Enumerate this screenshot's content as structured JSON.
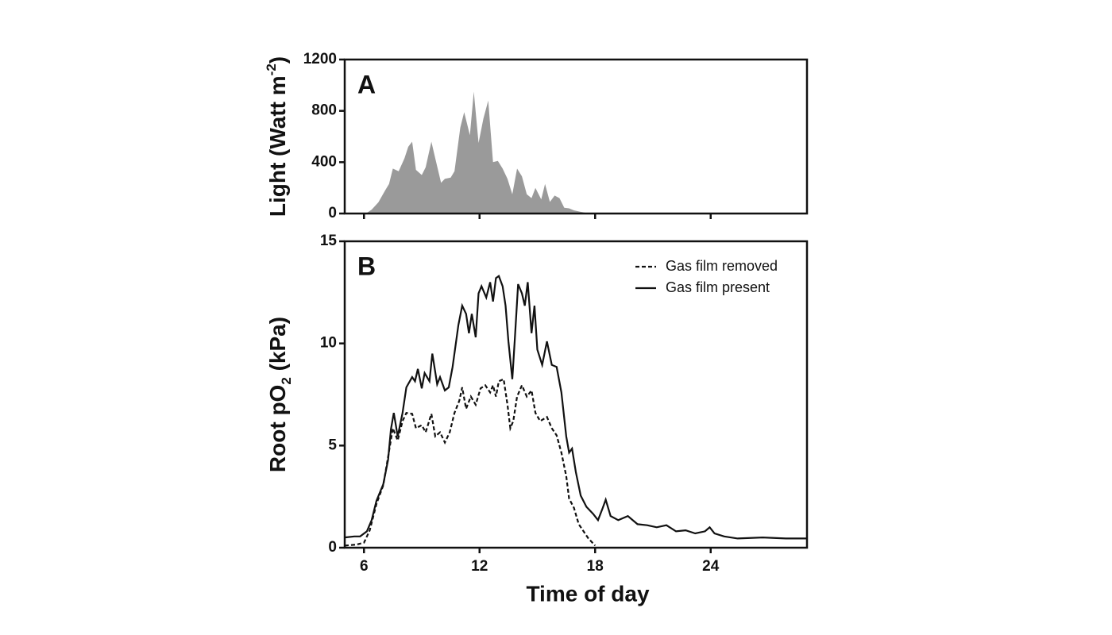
{
  "chart_data": [
    {
      "type": "area",
      "annotation": "A",
      "ylabel": [
        "Light (Watt m",
        "-2",
        ")"
      ],
      "color": "#9a9a9a",
      "xlim": [
        5,
        29
      ],
      "xticks": [
        6,
        12,
        18,
        24
      ],
      "show_xtick_labels": false,
      "ylim": [
        0,
        1200
      ],
      "yticks": [
        0,
        400,
        800,
        1200
      ],
      "x": [
        5.0,
        6.1,
        6.4,
        6.75,
        7.1,
        7.3,
        7.5,
        7.8,
        8.1,
        8.3,
        8.5,
        8.7,
        9.0,
        9.2,
        9.5,
        9.7,
        10.0,
        10.2,
        10.5,
        10.7,
        11.0,
        11.2,
        11.5,
        11.7,
        11.95,
        12.2,
        12.45,
        12.7,
        12.95,
        13.2,
        13.45,
        13.7,
        13.95,
        14.2,
        14.45,
        14.7,
        14.9,
        15.2,
        15.4,
        15.65,
        15.9,
        16.15,
        16.4,
        16.65,
        16.9,
        17.2,
        17.7,
        29.0
      ],
      "values": [
        0,
        0,
        30,
        87,
        180,
        230,
        350,
        330,
        430,
        520,
        560,
        340,
        300,
        360,
        560,
        430,
        240,
        270,
        280,
        330,
        670,
        790,
        610,
        950,
        550,
        740,
        880,
        400,
        410,
        350,
        270,
        150,
        350,
        290,
        150,
        120,
        200,
        110,
        230,
        90,
        140,
        120,
        45,
        40,
        25,
        15,
        0,
        0
      ]
    },
    {
      "type": "line",
      "annotation": "B",
      "ylabel": [
        "Root pO",
        "2",
        " (kPa)"
      ],
      "xlabel": "Time of day",
      "xlim": [
        5,
        29
      ],
      "xticks": [
        6,
        12,
        18,
        24
      ],
      "show_xtick_labels": true,
      "ylim": [
        0,
        15
      ],
      "yticks": [
        0,
        5,
        10,
        15
      ],
      "legend": "upper right",
      "series": [
        {
          "name": "Gas film removed",
          "color": "#111111",
          "dashed": true,
          "x": [
            5.0,
            5.6,
            6.0,
            6.3,
            6.65,
            7.0,
            7.25,
            7.5,
            7.75,
            8.0,
            8.2,
            8.5,
            8.7,
            9.0,
            9.2,
            9.5,
            9.7,
            9.95,
            10.2,
            10.45,
            10.7,
            10.95,
            11.1,
            11.3,
            11.55,
            11.8,
            12.05,
            12.3,
            12.55,
            12.7,
            12.85,
            13.0,
            13.25,
            13.45,
            13.6,
            13.75,
            13.95,
            14.2,
            14.45,
            14.7,
            14.9,
            15.15,
            15.5,
            15.75,
            16.0,
            16.25,
            16.5,
            16.65,
            16.9,
            17.15,
            17.4,
            17.65,
            18.0
          ],
          "values": [
            0.1,
            0.15,
            0.25,
            0.85,
            2.15,
            3.05,
            4.45,
            5.85,
            5.25,
            6.2,
            6.6,
            6.55,
            5.85,
            6.0,
            5.65,
            6.55,
            5.45,
            5.65,
            5.15,
            5.65,
            6.6,
            7.2,
            7.85,
            6.8,
            7.4,
            7.0,
            7.8,
            7.95,
            7.6,
            7.95,
            7.4,
            8.15,
            8.25,
            7.0,
            5.85,
            6.2,
            7.4,
            7.95,
            7.4,
            7.7,
            6.6,
            6.2,
            6.4,
            5.85,
            5.5,
            4.65,
            3.5,
            2.4,
            1.95,
            1.15,
            0.8,
            0.45,
            0.1
          ]
        },
        {
          "name": "Gas film present",
          "color": "#111111",
          "dashed": false,
          "x": [
            5.0,
            5.5,
            5.8,
            6.15,
            6.4,
            6.65,
            7.0,
            7.25,
            7.4,
            7.55,
            7.75,
            8.0,
            8.2,
            8.5,
            8.65,
            8.8,
            9.0,
            9.15,
            9.4,
            9.55,
            9.8,
            9.95,
            10.2,
            10.4,
            10.6,
            10.9,
            11.1,
            11.3,
            11.45,
            11.6,
            11.8,
            11.95,
            12.1,
            12.35,
            12.55,
            12.7,
            12.85,
            13.0,
            13.2,
            13.35,
            13.5,
            13.7,
            13.85,
            14.0,
            14.2,
            14.35,
            14.5,
            14.7,
            14.85,
            15.0,
            15.25,
            15.5,
            15.75,
            16.0,
            16.25,
            16.5,
            16.65,
            16.8,
            17.0,
            17.25,
            17.55,
            17.9,
            18.15,
            18.4,
            18.55,
            18.8,
            19.2,
            19.7,
            20.2,
            20.7,
            21.2,
            21.7,
            22.2,
            22.7,
            23.2,
            23.7,
            23.95,
            24.2,
            24.7,
            25.4,
            26.7,
            27.9,
            29.0
          ],
          "values": [
            0.5,
            0.55,
            0.55,
            0.8,
            1.35,
            2.3,
            3.1,
            4.3,
            5.8,
            6.6,
            5.45,
            6.6,
            7.85,
            8.35,
            8.15,
            8.75,
            7.8,
            8.55,
            8.15,
            9.5,
            8.0,
            8.35,
            7.7,
            7.85,
            8.85,
            10.9,
            11.85,
            11.45,
            10.5,
            11.45,
            10.3,
            12.45,
            12.8,
            12.25,
            13.0,
            12.05,
            13.2,
            13.3,
            12.8,
            11.85,
            10.1,
            8.25,
            10.5,
            12.9,
            12.45,
            11.85,
            13.0,
            10.5,
            11.85,
            9.7,
            8.95,
            10.1,
            8.95,
            8.85,
            7.6,
            5.45,
            4.65,
            4.85,
            3.7,
            2.55,
            2.0,
            1.65,
            1.35,
            1.95,
            2.35,
            1.55,
            1.35,
            1.55,
            1.15,
            1.1,
            1.0,
            1.1,
            0.8,
            0.85,
            0.7,
            0.8,
            1.0,
            0.7,
            0.55,
            0.45,
            0.5,
            0.45,
            0.45
          ]
        }
      ]
    }
  ]
}
